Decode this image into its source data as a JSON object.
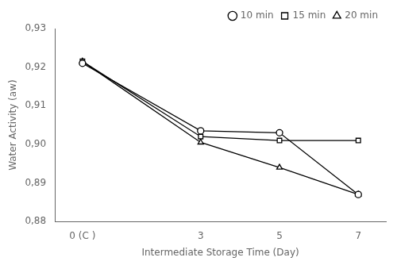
{
  "chart_data": {
    "type": "line",
    "xlabel": "Intermediate Storage Time (Day)",
    "ylabel": "Water Activity (aw)",
    "x": [
      0,
      3,
      5,
      7
    ],
    "xlim": [
      -0.7,
      7.7
    ],
    "xticks": [
      {
        "value": 0,
        "label": "0 (C )"
      },
      3,
      5,
      7
    ],
    "ylim": [
      0.88,
      0.93
    ],
    "yticks": [
      {
        "value": 0.88,
        "label": "0,88"
      },
      {
        "value": 0.89,
        "label": "0,89"
      },
      {
        "value": 0.9,
        "label": "0,90"
      },
      {
        "value": 0.91,
        "label": "0,91"
      },
      {
        "value": 0.92,
        "label": "0,92"
      },
      {
        "value": 0.93,
        "label": "0,93"
      }
    ],
    "series": [
      {
        "name": "10 min",
        "color": "#000000",
        "marker": "circle",
        "values": [
          0.921,
          0.9035,
          0.903,
          0.887
        ]
      },
      {
        "name": "15 min",
        "color": "#000000",
        "marker": "square",
        "values": [
          0.9215,
          0.902,
          0.901,
          0.901
        ]
      },
      {
        "name": "20 min",
        "color": "#000000",
        "marker": "triangle",
        "values": [
          0.9215,
          0.9005,
          0.894,
          0.887
        ]
      }
    ],
    "legend": "upper right",
    "grid": false
  }
}
